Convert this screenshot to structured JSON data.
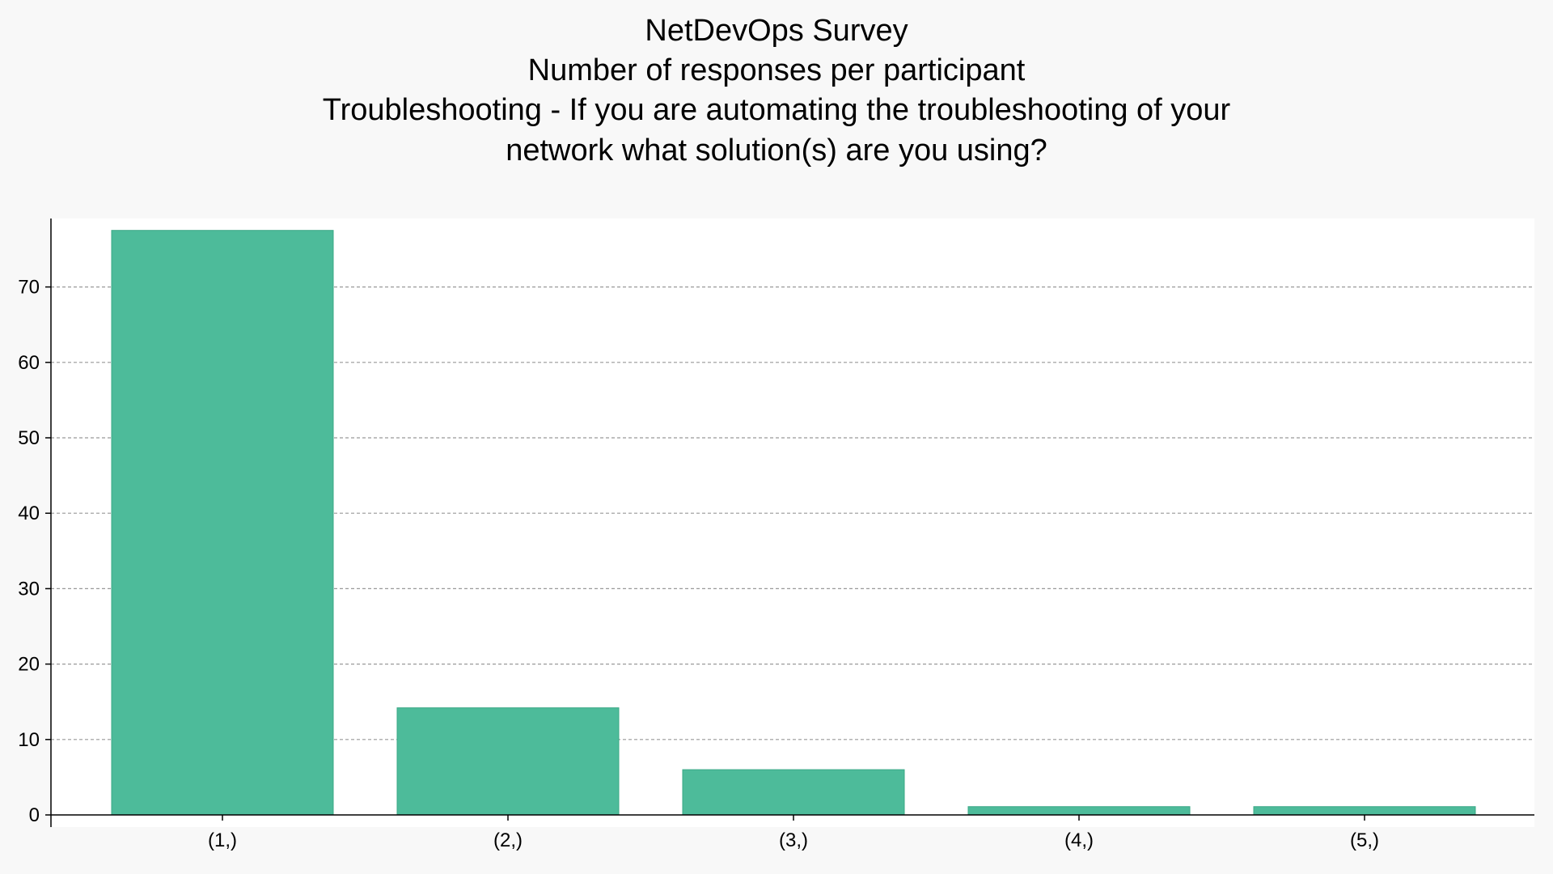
{
  "chart_data": {
    "type": "bar",
    "title_lines": [
      "NetDevOps Survey",
      "Number of responses per participant",
      "Troubleshooting - If you are automating the troubleshooting of your",
      "network what solution(s) are you using?"
    ],
    "categories": [
      "(1,)",
      "(2,)",
      "(3,)",
      "(4,)",
      "(5,)"
    ],
    "values": [
      77.5,
      14.2,
      6.0,
      1.1,
      1.1
    ],
    "ylim": [
      0,
      79
    ],
    "yticks": [
      0,
      10,
      20,
      30,
      40,
      50,
      60,
      70
    ],
    "xlabel": "",
    "ylabel": "",
    "grid": true,
    "legend": false,
    "colors": {
      "bar": "#4dbb9a",
      "bar_edge": "#3aa886",
      "grid": "#999999",
      "plot_bg": "#ffffff",
      "page_bg": "#f8f8f8",
      "axis": "#000000"
    }
  }
}
